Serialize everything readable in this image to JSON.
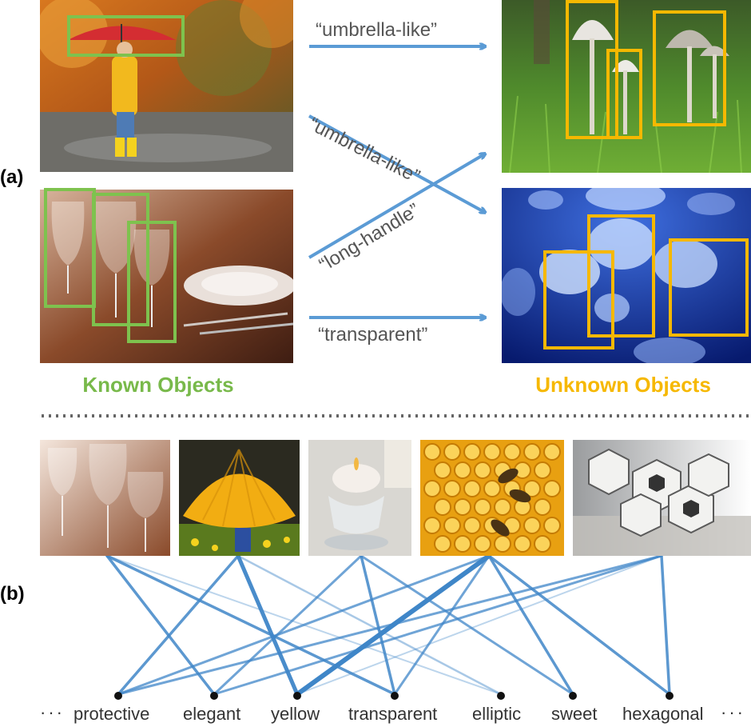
{
  "panels": {
    "a": "(a)",
    "b": "(b)"
  },
  "groups": {
    "known": "Known Objects",
    "unknown": "Unknown Objects"
  },
  "arrows": {
    "a1": "“umbrella-like”",
    "a2": "“umbrella-like”",
    "a3": "“long-handle”",
    "a4": "“transparent”"
  },
  "attributes": [
    "protective",
    "elegant",
    "yellow",
    "transparent",
    "elliptic",
    "sweet",
    "hexagonal"
  ],
  "ellipsis_left": "···",
  "ellipsis_right": "···",
  "colors": {
    "known_box": "#7ec24e",
    "unknown_box": "#f6b800",
    "arrow": "#5b9bd5",
    "edge": "#3f86c8"
  }
}
